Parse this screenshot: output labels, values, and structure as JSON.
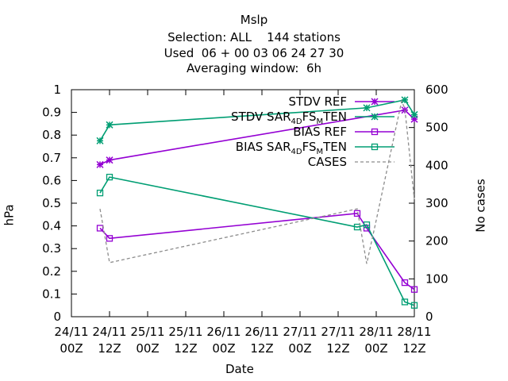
{
  "chart_data": {
    "type": "line",
    "title": "Mslp",
    "subtitle_lines": [
      "Selection: ALL    144 stations",
      "Used  06 + 00 03 06 24 27 30",
      "Averaging window:  6h"
    ],
    "xlabel": "Date",
    "ylabel": "hPa",
    "y2label": "No cases",
    "x_tick_labels": [
      [
        "24/11",
        "00Z"
      ],
      [
        "24/11",
        "12Z"
      ],
      [
        "25/11",
        "00Z"
      ],
      [
        "25/11",
        "12Z"
      ],
      [
        "26/11",
        "00Z"
      ],
      [
        "26/11",
        "12Z"
      ],
      [
        "27/11",
        "00Z"
      ],
      [
        "27/11",
        "12Z"
      ],
      [
        "28/11",
        "00Z"
      ],
      [
        "28/11",
        "12Z"
      ]
    ],
    "x_unit": "hours since 24/11 00Z",
    "xlim": [
      0,
      108
    ],
    "ylim": [
      0,
      1
    ],
    "y_ticks": [
      "0",
      "0.1",
      "0.2",
      "0.3",
      "0.4",
      "0.5",
      "0.6",
      "0.7",
      "0.8",
      "0.9",
      "1"
    ],
    "y2lim": [
      0,
      600
    ],
    "y2_ticks": [
      "0",
      "100",
      "200",
      "300",
      "400",
      "500",
      "600"
    ],
    "grid": false,
    "legend_position": "top-right",
    "series": [
      {
        "name": "STDV REF",
        "legend_parts": [
          [
            "STDV REF",
            ""
          ]
        ],
        "color": "#9400d3",
        "marker": "star",
        "dash": "",
        "axis": "y",
        "x": [
          9,
          12,
          105,
          108
        ],
        "y": [
          0.67,
          0.69,
          0.91,
          0.87
        ]
      },
      {
        "name": "STDV SAR_4DFS_MTEN",
        "legend_parts": [
          [
            "STDV SAR",
            ""
          ],
          [
            "4D",
            "sub"
          ],
          [
            "FS",
            ""
          ],
          [
            "M",
            "sub"
          ],
          [
            "TEN",
            ""
          ]
        ],
        "color": "#009e73",
        "marker": "star",
        "dash": "",
        "axis": "y",
        "x": [
          9,
          12,
          93,
          105,
          108
        ],
        "y": [
          0.775,
          0.845,
          0.92,
          0.955,
          0.89
        ]
      },
      {
        "name": "BIAS REF",
        "legend_parts": [
          [
            "BIAS REF",
            ""
          ]
        ],
        "color": "#9400d3",
        "marker": "square",
        "dash": "",
        "axis": "y",
        "x": [
          9,
          12,
          90,
          93,
          105,
          108
        ],
        "y": [
          0.39,
          0.345,
          0.455,
          0.39,
          0.15,
          0.12
        ]
      },
      {
        "name": "BIAS SAR_4DFS_MTEN",
        "legend_parts": [
          [
            "BIAS SAR",
            ""
          ],
          [
            "4D",
            "sub"
          ],
          [
            "FS",
            ""
          ],
          [
            "M",
            "sub"
          ],
          [
            "TEN",
            ""
          ]
        ],
        "color": "#009e73",
        "marker": "square",
        "dash": "",
        "axis": "y",
        "x": [
          9,
          12,
          90,
          93,
          105,
          108
        ],
        "y": [
          0.545,
          0.615,
          0.395,
          0.405,
          0.065,
          0.05
        ]
      },
      {
        "name": "CASES",
        "legend_parts": [
          [
            "CASES",
            ""
          ]
        ],
        "color": "#8c8c8c",
        "marker": "none",
        "dash": "4,3",
        "axis": "y2",
        "x": [
          9,
          12,
          90,
          93,
          96,
          104,
          105,
          108
        ],
        "y": [
          285,
          143,
          285,
          140,
          255,
          570,
          550,
          310
        ]
      }
    ]
  }
}
